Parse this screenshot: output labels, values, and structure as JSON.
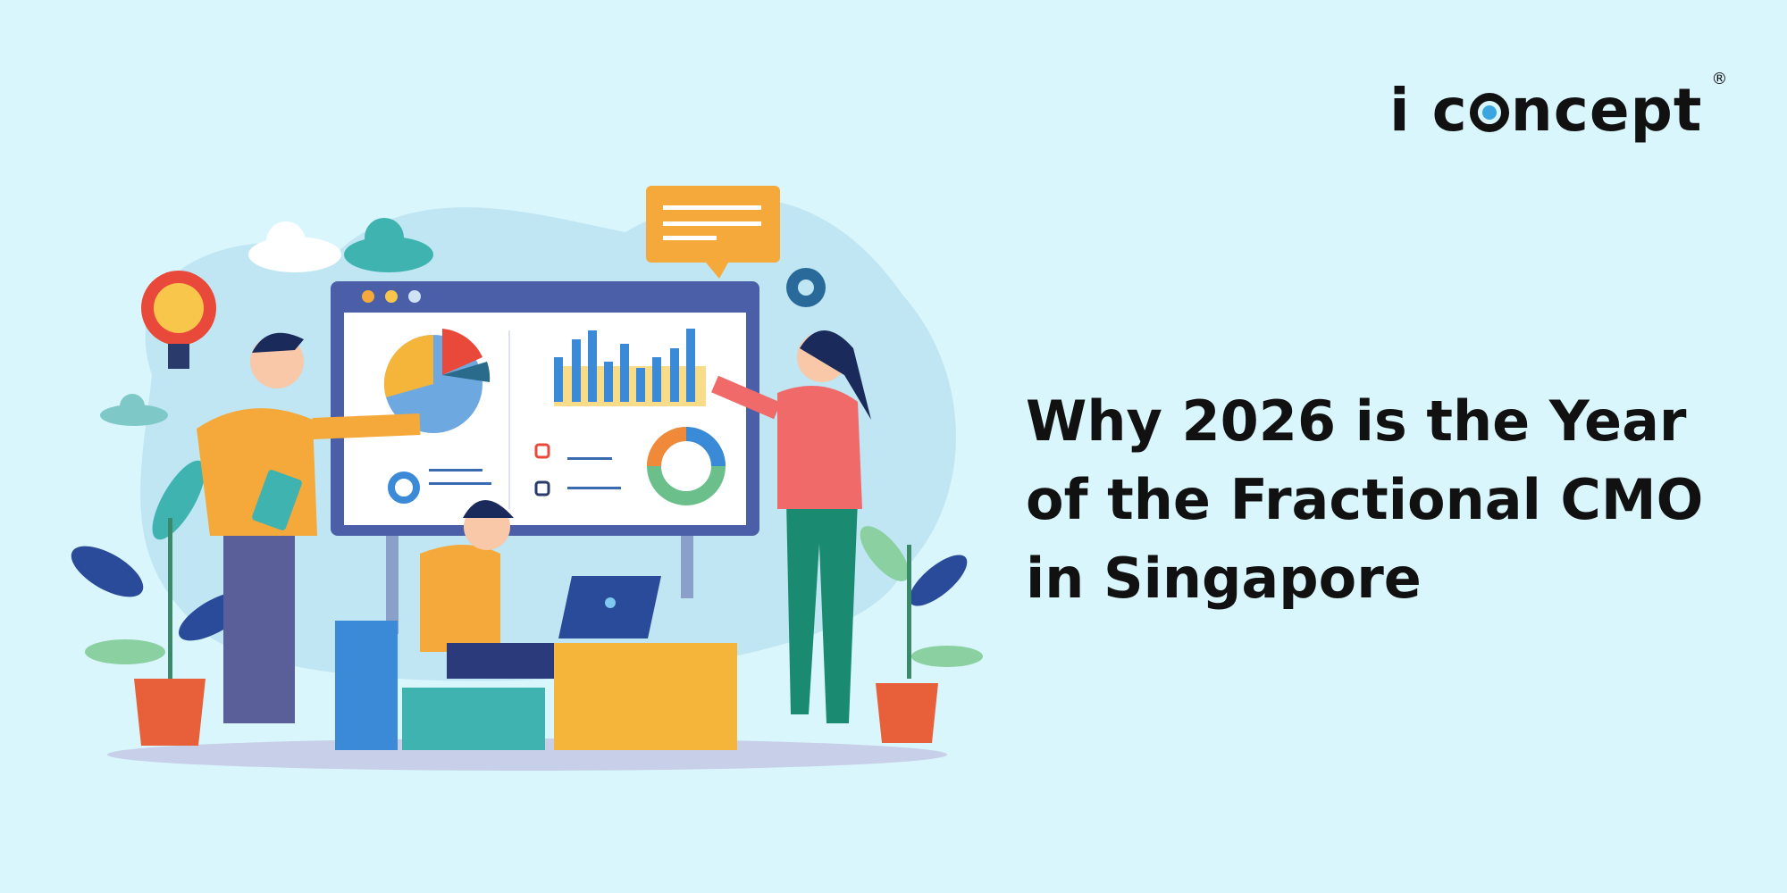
{
  "brand": {
    "logo_text_before": "i c",
    "logo_text_after": "ncept",
    "registered": "®",
    "logo_dot_color": "#3aa5e0"
  },
  "headline": {
    "lines": [
      "Why 2026 is the Year",
      "of the Fractional CMO",
      "in Singapore"
    ]
  },
  "colors": {
    "background": "#daf6fd",
    "text": "#111111",
    "accent_orange": "#f5a93a",
    "accent_blue": "#4a78c8"
  }
}
